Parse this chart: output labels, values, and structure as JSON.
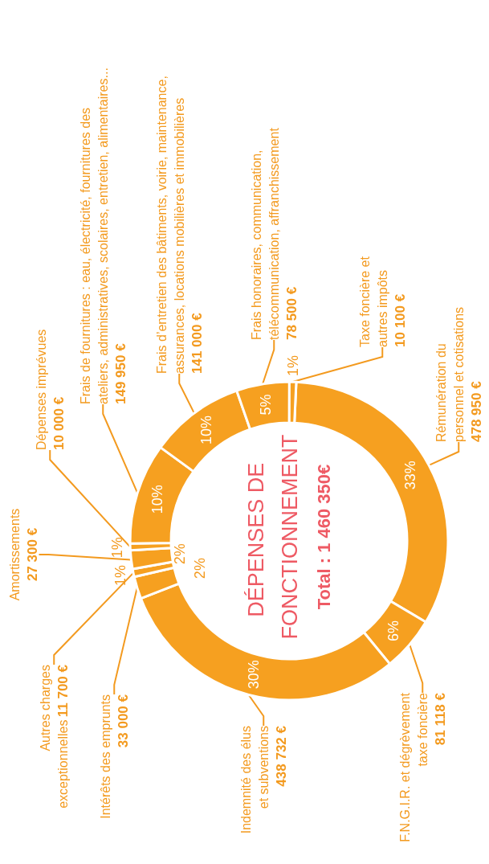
{
  "chart_data": {
    "type": "donut",
    "title": "DÉPENSES DE FONCTIONNEMENT",
    "subtitle": "Total : 1 460 350€",
    "categories": [
      "Rémunération du\npersonnel et cotisations",
      "F.N.G.I.R. et dégrèvement\ntaxe foncière",
      "Indemnité des élus\net subventions",
      "Intérêts des emprunts",
      "Autres charges\nexceptionnelles",
      "Amortissements",
      "Dépenses imprévues",
      "Frais de fournitures : eau, électricité, fournitures des\nateliers, administratives, scolaires, entretien, alimentaires...",
      "Frais d’entretien des bâtiments, voirie, maintenance,\nassurances, locations mobilières et immobilières",
      "Frais honoraires, communication,\ntélécommunication, affranchissement",
      "Taxe foncière et\nautres impôts"
    ],
    "values": [
      478950,
      81118,
      438732,
      33000,
      11700,
      27300,
      10000,
      149950,
      141000,
      78500,
      10100
    ],
    "value_labels": [
      "478 950 €",
      "81 118 €",
      "438 732 €",
      "33 000 €",
      "11 700 €",
      "27 300 €",
      "10 000 €",
      "149 950 €",
      "141 000 €",
      "78 500 €",
      "10 100 €"
    ],
    "colors": [
      "#f6a020",
      "#f6a020",
      "#f6a020",
      "#f6a020",
      "#f6a020",
      "#f6a020",
      "#f6a020",
      "#f6a020",
      "#f6a020",
      "#f6a020",
      "#f6a020"
    ],
    "annotations": [
      "33%",
      "6%",
      "30%",
      "2%",
      "1%",
      "2%",
      "1%",
      "10%",
      "10%",
      "5%",
      "1%"
    ]
  }
}
